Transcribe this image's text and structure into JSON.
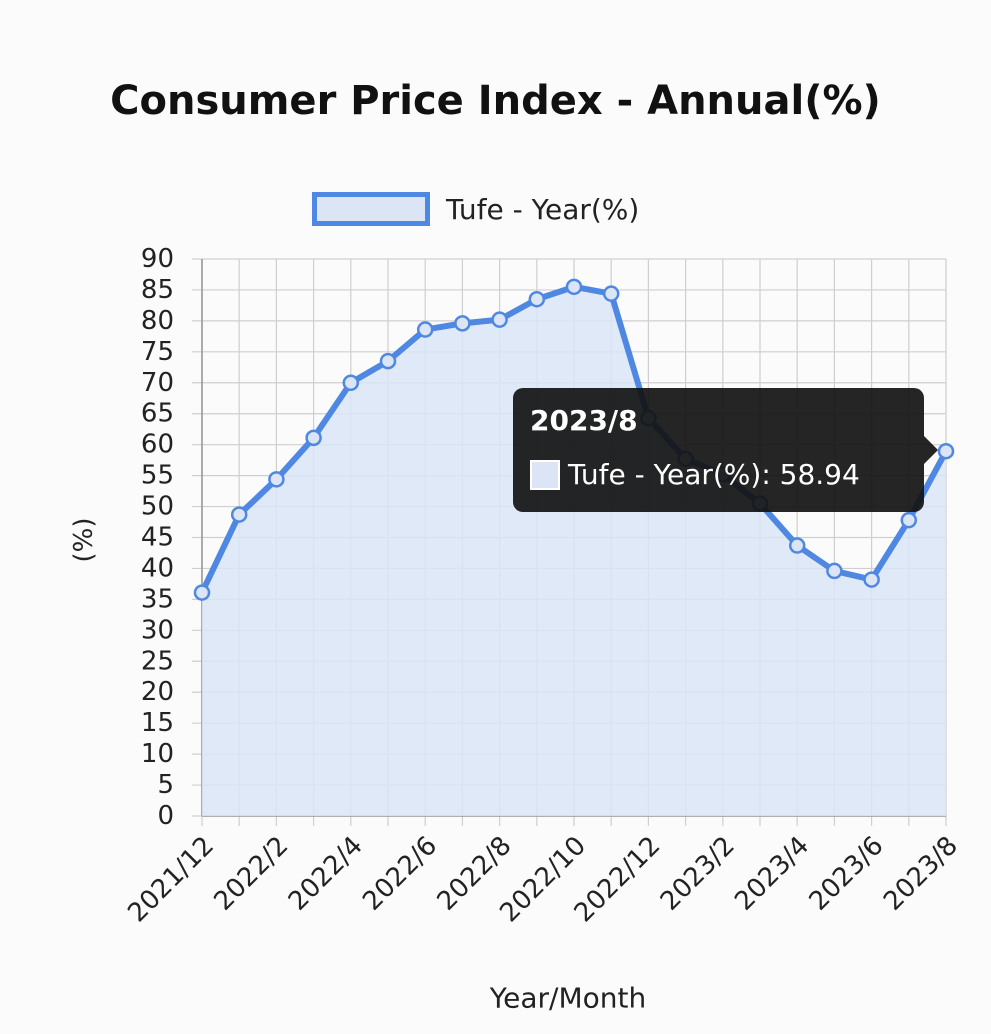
{
  "chart_data": {
    "type": "line",
    "title": "Consumer Price Index - Annual(%)",
    "xlabel": "Year/Month",
    "ylabel": "(%)",
    "ylim": [
      0,
      90
    ],
    "ytick_step": 5,
    "grid": true,
    "legend_position": "top",
    "categories": [
      "2021/12",
      "2022/1",
      "2022/2",
      "2022/3",
      "2022/4",
      "2022/5",
      "2022/6",
      "2022/7",
      "2022/8",
      "2022/9",
      "2022/10",
      "2022/11",
      "2022/12",
      "2023/1",
      "2023/2",
      "2023/3",
      "2023/4",
      "2023/5",
      "2023/6",
      "2023/7",
      "2023/8"
    ],
    "tick_labels": [
      "2021/12",
      "2022/2",
      "2022/4",
      "2022/6",
      "2022/8",
      "2022/10",
      "2022/12",
      "2023/2",
      "2023/4",
      "2023/6",
      "2023/8"
    ],
    "series": [
      {
        "name": "Tufe - Year(%)",
        "values": [
          36.1,
          48.7,
          54.4,
          61.1,
          70.0,
          73.5,
          78.6,
          79.6,
          80.2,
          83.5,
          85.5,
          84.4,
          64.3,
          57.7,
          55.2,
          50.5,
          43.7,
          39.6,
          38.2,
          47.8,
          58.94
        ]
      }
    ],
    "colors": {
      "line": "#4f88e3",
      "fill": "#dbe5f6",
      "grid": "#cfcfcf",
      "axis": "#999999"
    }
  },
  "tooltip": {
    "title": "2023/8",
    "text": "Tufe - Year(%): 58.94"
  }
}
